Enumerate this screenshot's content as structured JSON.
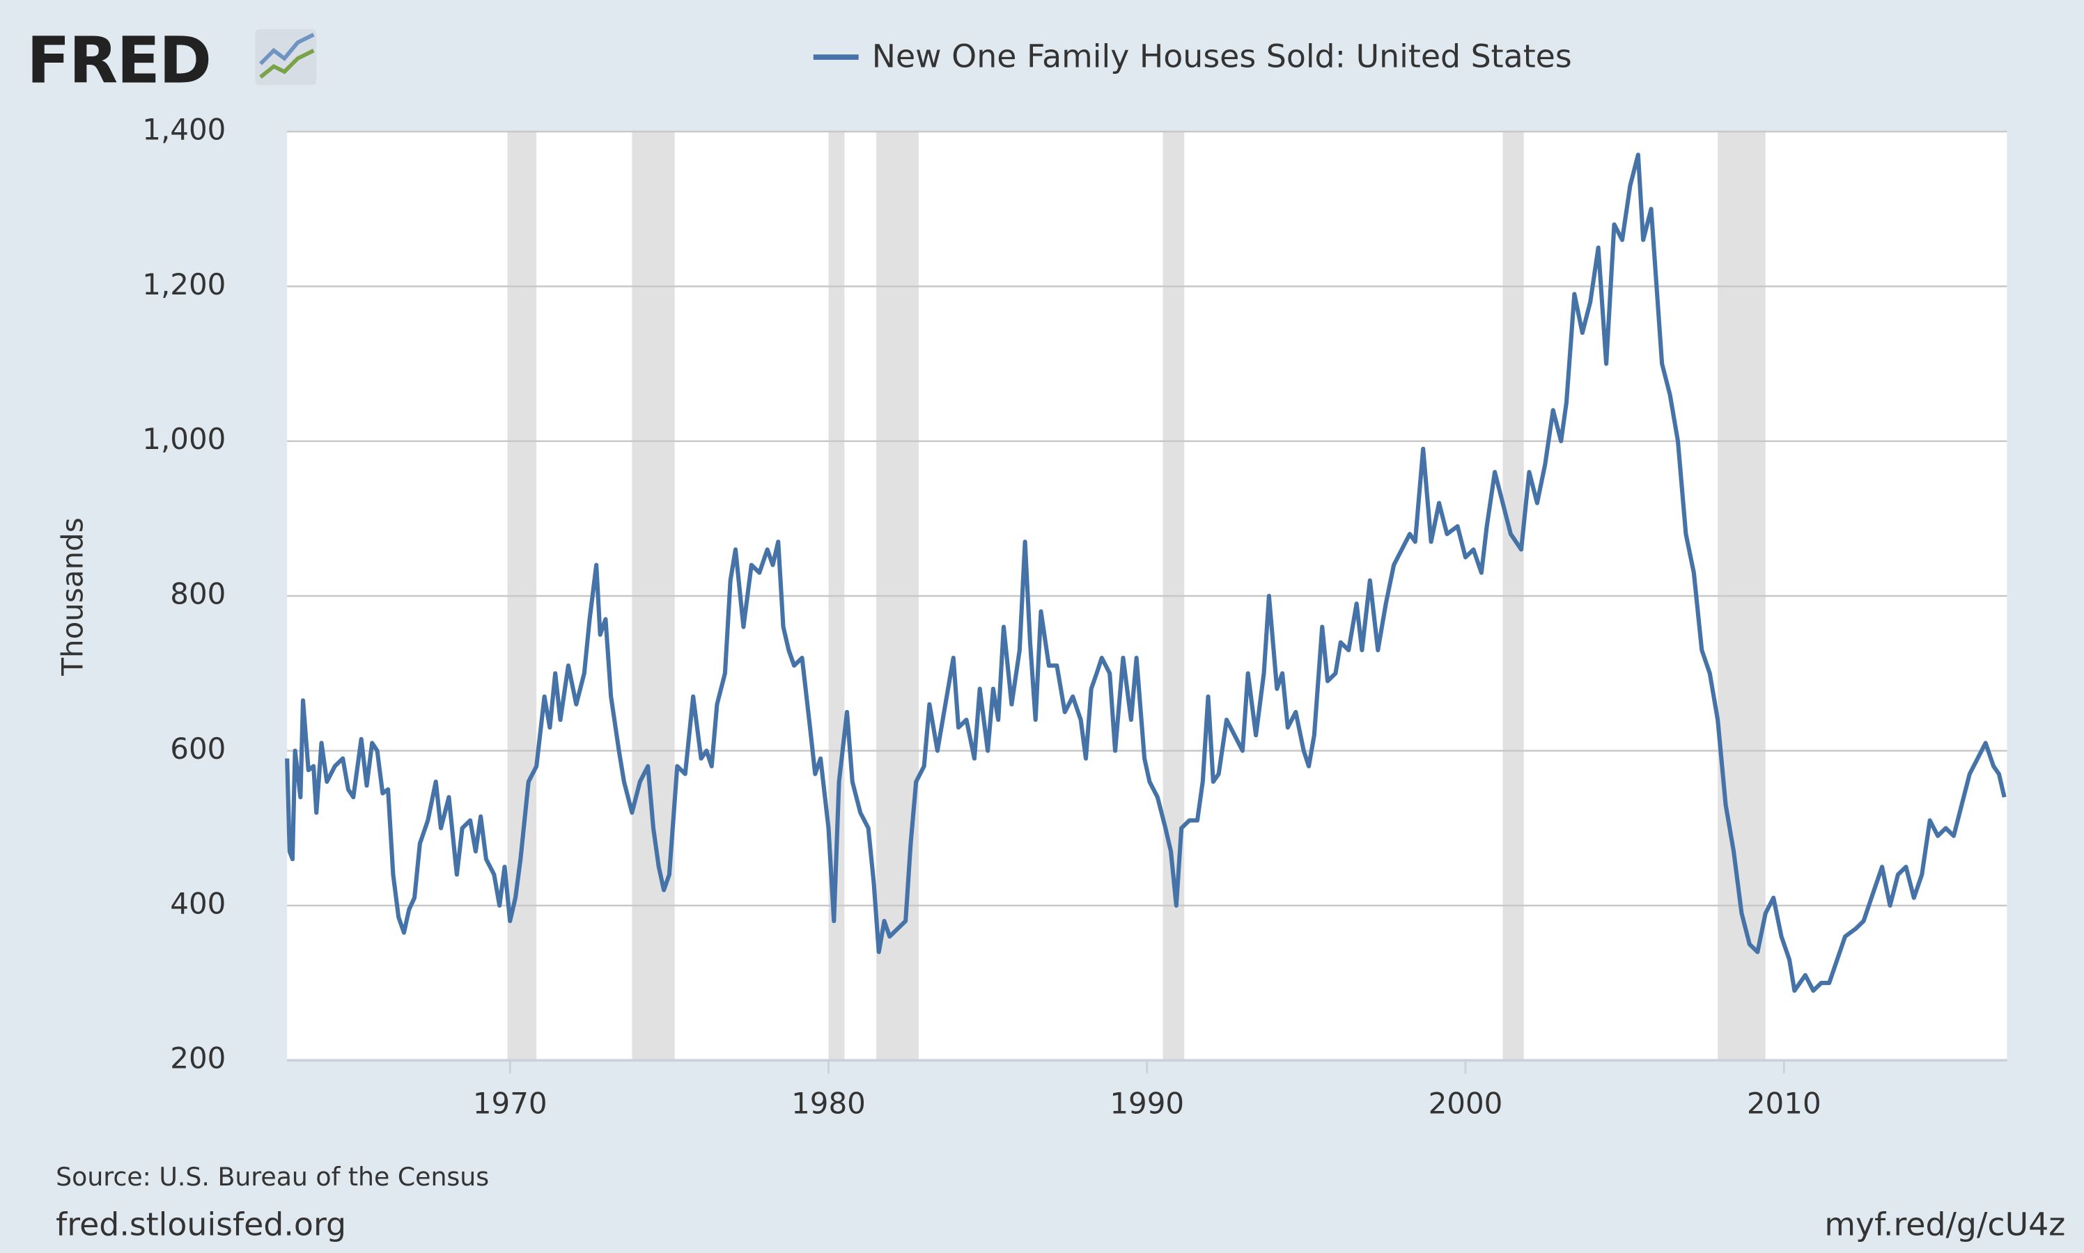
{
  "logo": "FRED",
  "source": "Source: U.S. Bureau of the Census",
  "site": "fred.stlouisfed.org",
  "short_url": "myf.red/g/cU4z",
  "chart_data": {
    "type": "line",
    "y_label": "Thousands",
    "grid": true,
    "xlim": [
      1963,
      2017
    ],
    "ylim": [
      200,
      1400
    ],
    "xticks": [
      1970,
      1980,
      1990,
      2000,
      2010
    ],
    "yticks": [
      200,
      400,
      600,
      800,
      {
        "value": 1000,
        "label": "1,000"
      },
      {
        "value": 1200,
        "label": "1,200"
      },
      {
        "value": 1400,
        "label": "1,400"
      }
    ],
    "recessions": [
      [
        1969.92,
        1970.83
      ],
      [
        1973.83,
        1975.17
      ],
      [
        1980.0,
        1980.5
      ],
      [
        1981.5,
        1982.83
      ],
      [
        1990.5,
        1991.17
      ],
      [
        2001.17,
        2001.83
      ],
      [
        2007.92,
        2009.42
      ]
    ],
    "x": [
      1963.0,
      1963.08,
      1963.17,
      1963.25,
      1963.42,
      1963.5,
      1963.67,
      1963.83,
      1963.92,
      1964.08,
      1964.25,
      1964.5,
      1964.75,
      1964.92,
      1965.08,
      1965.33,
      1965.5,
      1965.67,
      1965.83,
      1966.0,
      1966.17,
      1966.33,
      1966.5,
      1966.67,
      1966.83,
      1967.0,
      1967.17,
      1967.42,
      1967.67,
      1967.83,
      1968.08,
      1968.33,
      1968.5,
      1968.75,
      1968.92,
      1969.08,
      1969.25,
      1969.5,
      1969.67,
      1969.83,
      1970.0,
      1970.17,
      1970.33,
      1970.58,
      1970.83,
      1971.08,
      1971.25,
      1971.42,
      1971.58,
      1971.83,
      1972.08,
      1972.33,
      1972.5,
      1972.71,
      1972.83,
      1973.0,
      1973.17,
      1973.42,
      1973.58,
      1973.83,
      1974.08,
      1974.33,
      1974.5,
      1974.67,
      1974.83,
      1975.0,
      1975.25,
      1975.5,
      1975.75,
      1976.0,
      1976.17,
      1976.33,
      1976.5,
      1976.75,
      1976.92,
      1977.08,
      1977.33,
      1977.58,
      1977.83,
      1978.08,
      1978.25,
      1978.42,
      1978.58,
      1978.75,
      1978.92,
      1979.17,
      1979.42,
      1979.58,
      1979.75,
      1980.0,
      1980.17,
      1980.33,
      1980.58,
      1980.75,
      1981.0,
      1981.25,
      1981.42,
      1981.58,
      1981.75,
      1981.92,
      1982.17,
      1982.42,
      1982.58,
      1982.75,
      1983.0,
      1983.17,
      1983.42,
      1983.67,
      1983.92,
      1984.08,
      1984.33,
      1984.58,
      1984.75,
      1985.0,
      1985.17,
      1985.33,
      1985.5,
      1985.75,
      1986.0,
      1986.17,
      1986.33,
      1986.5,
      1986.67,
      1986.92,
      1987.17,
      1987.42,
      1987.67,
      1987.92,
      1988.08,
      1988.25,
      1988.42,
      1988.58,
      1988.83,
      1989.0,
      1989.25,
      1989.5,
      1989.67,
      1989.92,
      1990.08,
      1990.33,
      1990.58,
      1990.75,
      1990.92,
      1991.08,
      1991.33,
      1991.58,
      1991.75,
      1991.92,
      1992.08,
      1992.25,
      1992.5,
      1992.75,
      1993.0,
      1993.17,
      1993.42,
      1993.67,
      1993.83,
      1994.08,
      1994.25,
      1994.42,
      1994.67,
      1994.92,
      1995.08,
      1995.25,
      1995.5,
      1995.67,
      1995.92,
      1996.08,
      1996.33,
      1996.58,
      1996.75,
      1997.0,
      1997.25,
      1997.5,
      1997.75,
      1998.0,
      1998.25,
      1998.42,
      1998.67,
      1998.92,
      1999.17,
      1999.42,
      1999.75,
      2000.0,
      2000.25,
      2000.5,
      2000.67,
      2000.92,
      2001.17,
      2001.42,
      2001.75,
      2002.0,
      2002.25,
      2002.5,
      2002.75,
      2003.0,
      2003.17,
      2003.42,
      2003.67,
      2003.92,
      2004.17,
      2004.42,
      2004.67,
      2004.92,
      2005.17,
      2005.42,
      2005.58,
      2005.83,
      2006.0,
      2006.17,
      2006.42,
      2006.67,
      2006.92,
      2007.17,
      2007.42,
      2007.67,
      2007.92,
      2008.17,
      2008.42,
      2008.67,
      2008.92,
      2009.17,
      2009.42,
      2009.67,
      2009.92,
      2010.17,
      2010.33,
      2010.67,
      2010.92,
      2011.17,
      2011.42,
      2011.67,
      2011.92,
      2012.25,
      2012.5,
      2012.83,
      2013.08,
      2013.33,
      2013.58,
      2013.83,
      2014.08,
      2014.33,
      2014.58,
      2014.83,
      2015.08,
      2015.33,
      2015.58,
      2015.83,
      2016.08,
      2016.33,
      2016.58,
      2016.75,
      2016.92
    ],
    "series": [
      {
        "name": "New One Family Houses Sold: United States",
        "color": "#4572a7",
        "values": [
          590,
          470,
          460,
          600,
          540,
          665,
          575,
          580,
          520,
          610,
          560,
          580,
          590,
          550,
          540,
          615,
          555,
          610,
          600,
          545,
          550,
          440,
          385,
          365,
          395,
          410,
          480,
          510,
          560,
          500,
          540,
          440,
          500,
          510,
          470,
          515,
          460,
          440,
          400,
          450,
          380,
          410,
          460,
          560,
          580,
          670,
          630,
          700,
          640,
          710,
          660,
          700,
          770,
          840,
          750,
          770,
          670,
          600,
          560,
          520,
          560,
          580,
          500,
          450,
          420,
          440,
          580,
          570,
          670,
          590,
          600,
          580,
          660,
          700,
          820,
          860,
          760,
          840,
          830,
          860,
          840,
          870,
          760,
          730,
          710,
          720,
          630,
          570,
          590,
          500,
          380,
          560,
          650,
          560,
          520,
          500,
          430,
          340,
          380,
          360,
          370,
          380,
          480,
          560,
          580,
          660,
          600,
          660,
          720,
          630,
          640,
          590,
          680,
          600,
          680,
          640,
          760,
          660,
          730,
          870,
          740,
          640,
          780,
          710,
          710,
          650,
          670,
          640,
          590,
          680,
          700,
          720,
          700,
          600,
          720,
          640,
          720,
          590,
          560,
          540,
          500,
          470,
          400,
          500,
          510,
          510,
          560,
          670,
          560,
          570,
          640,
          620,
          600,
          700,
          620,
          700,
          800,
          680,
          700,
          630,
          650,
          600,
          580,
          620,
          760,
          690,
          700,
          740,
          730,
          790,
          730,
          820,
          730,
          790,
          840,
          860,
          880,
          870,
          990,
          870,
          920,
          880,
          890,
          850,
          860,
          830,
          890,
          960,
          920,
          880,
          860,
          960,
          920,
          970,
          1040,
          1000,
          1050,
          1190,
          1140,
          1180,
          1250,
          1100,
          1280,
          1260,
          1330,
          1370,
          1260,
          1300,
          1200,
          1100,
          1060,
          1000,
          880,
          830,
          730,
          700,
          640,
          530,
          470,
          390,
          350,
          340,
          390,
          410,
          360,
          330,
          290,
          310,
          290,
          300,
          300,
          330,
          360,
          370,
          380,
          420,
          450,
          400,
          440,
          450,
          410,
          440,
          510,
          490,
          500,
          490,
          530,
          570,
          590,
          610,
          580,
          570,
          540
        ]
      }
    ]
  }
}
